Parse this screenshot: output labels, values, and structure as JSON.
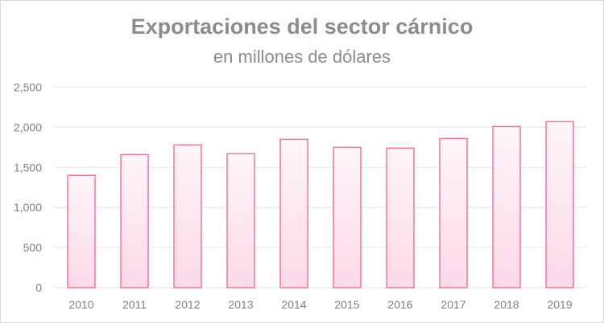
{
  "chart_data": {
    "type": "bar",
    "title": "Exportaciones del sector cárnico",
    "subtitle": "en millones de dólares",
    "categories": [
      "2010",
      "2011",
      "2012",
      "2013",
      "2014",
      "2015",
      "2016",
      "2017",
      "2018",
      "2019"
    ],
    "values": [
      1400,
      1660,
      1780,
      1670,
      1850,
      1750,
      1740,
      1860,
      2010,
      2070
    ],
    "ylim": [
      0,
      2500
    ],
    "yticks": [
      0,
      500,
      1000,
      1500,
      2000,
      2500
    ],
    "ytick_labels": [
      "0",
      "500",
      "1,000",
      "1,500",
      "2,000",
      "2,500"
    ],
    "grid": true,
    "colors": {
      "bar_fill_top": "#fff5f9",
      "bar_fill_bottom": "#fcd9e8",
      "bar_edge": "#e5799f",
      "grid": "#e6e6e6",
      "text": "#8c8c8c"
    }
  }
}
